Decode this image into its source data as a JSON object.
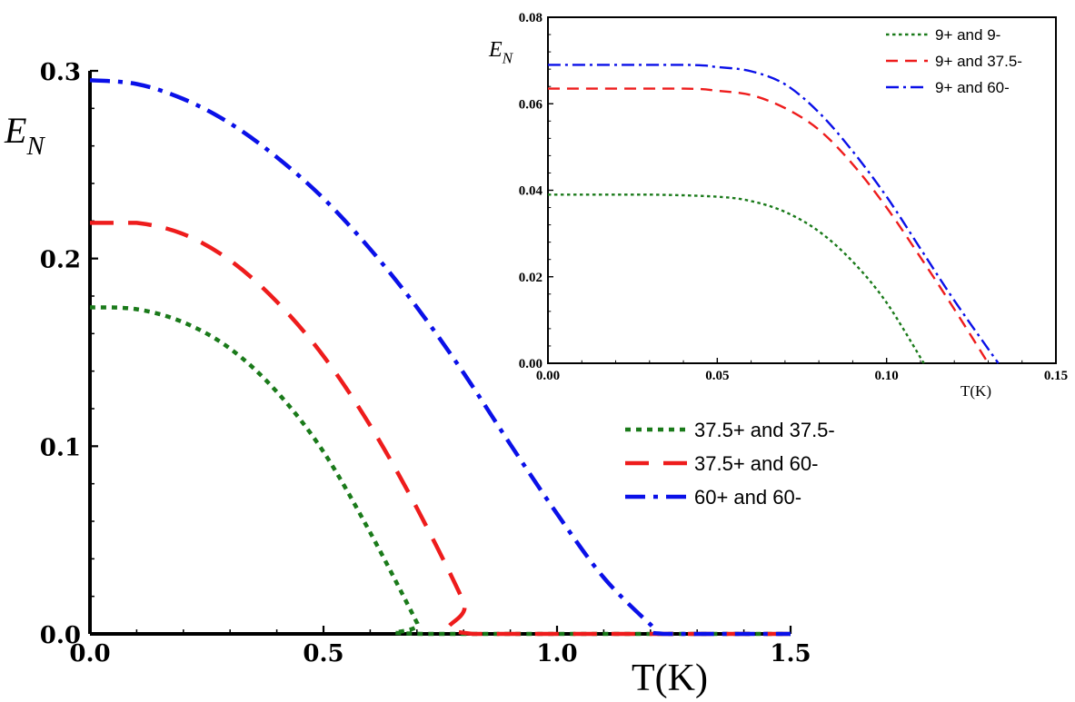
{
  "chart_data": [
    {
      "id": "main",
      "type": "line",
      "title": "",
      "xlabel": "T(K)",
      "ylabel": "E",
      "ylabel_sub": "N",
      "xlim": [
        0,
        1.5
      ],
      "ylim": [
        0,
        0.3
      ],
      "x_ticks": [
        0.0,
        0.5,
        1.0,
        1.5
      ],
      "x_tick_labels": [
        "0.0",
        "0.5",
        "1.0",
        "1.5"
      ],
      "y_ticks": [
        0.0,
        0.1,
        0.2,
        0.3
      ],
      "y_tick_labels": [
        "0.0",
        "0.1",
        "0.2",
        "0.3"
      ],
      "legend_position": "middle-right",
      "series": [
        {
          "name": "37.5+ and 37.5-",
          "color": "#1a7a1a",
          "style": "dotted",
          "x": [
            0,
            0.1,
            0.2,
            0.3,
            0.4,
            0.5,
            0.6,
            0.7,
            0.71,
            1.5
          ],
          "y": [
            0.174,
            0.173,
            0.166,
            0.152,
            0.129,
            0.097,
            0.054,
            0.006,
            0,
            0
          ]
        },
        {
          "name": "37.5+ and 60-",
          "color": "#ee1c1c",
          "style": "dashed",
          "x": [
            0,
            0.1,
            0.2,
            0.3,
            0.4,
            0.5,
            0.6,
            0.7,
            0.8,
            0.82,
            1.5
          ],
          "y": [
            0.219,
            0.219,
            0.213,
            0.199,
            0.177,
            0.148,
            0.111,
            0.067,
            0.017,
            0,
            0
          ]
        },
        {
          "name": "60+ and 60-",
          "color": "#0a10e8",
          "style": "dashdot",
          "x": [
            0,
            0.1,
            0.2,
            0.3,
            0.4,
            0.5,
            0.6,
            0.7,
            0.8,
            0.9,
            1.0,
            1.1,
            1.2,
            1.23,
            1.5
          ],
          "y": [
            0.295,
            0.293,
            0.285,
            0.272,
            0.254,
            0.232,
            0.205,
            0.174,
            0.139,
            0.101,
            0.064,
            0.03,
            0.005,
            0,
            0
          ]
        }
      ]
    },
    {
      "id": "inset",
      "type": "line",
      "title": "",
      "xlabel": "T(K)",
      "ylabel": "E",
      "ylabel_sub": "N",
      "xlim": [
        0,
        0.15
      ],
      "ylim": [
        0,
        0.08
      ],
      "x_ticks": [
        0.0,
        0.05,
        0.1,
        0.15
      ],
      "x_tick_labels": [
        "0.00",
        "0.05",
        "0.10",
        "0.15"
      ],
      "y_ticks": [
        0.0,
        0.02,
        0.04,
        0.06,
        0.08
      ],
      "y_tick_labels": [
        "0.00",
        "0.02",
        "0.04",
        "0.06",
        "0.08"
      ],
      "legend_position": "top-right",
      "series": [
        {
          "name": "9+ and 9-",
          "color": "#1a7a1a",
          "style": "dotted",
          "x": [
            0,
            0.03,
            0.05,
            0.06,
            0.07,
            0.08,
            0.09,
            0.1,
            0.111
          ],
          "y": [
            0.039,
            0.039,
            0.0385,
            0.0375,
            0.035,
            0.0305,
            0.0235,
            0.014,
            0
          ]
        },
        {
          "name": "9+ and 37.5-",
          "color": "#ee1c1c",
          "style": "dashed",
          "x": [
            0,
            0.04,
            0.05,
            0.06,
            0.07,
            0.08,
            0.09,
            0.1,
            0.11,
            0.12,
            0.13
          ],
          "y": [
            0.0635,
            0.0635,
            0.063,
            0.062,
            0.059,
            0.054,
            0.046,
            0.036,
            0.0245,
            0.0125,
            0
          ]
        },
        {
          "name": "9+ and 60-",
          "color": "#0a10e8",
          "style": "dashdot",
          "x": [
            0,
            0.04,
            0.05,
            0.06,
            0.07,
            0.08,
            0.09,
            0.1,
            0.11,
            0.12,
            0.133
          ],
          "y": [
            0.069,
            0.069,
            0.0685,
            0.0675,
            0.0645,
            0.058,
            0.049,
            0.0385,
            0.0265,
            0.0145,
            0
          ]
        }
      ]
    }
  ]
}
